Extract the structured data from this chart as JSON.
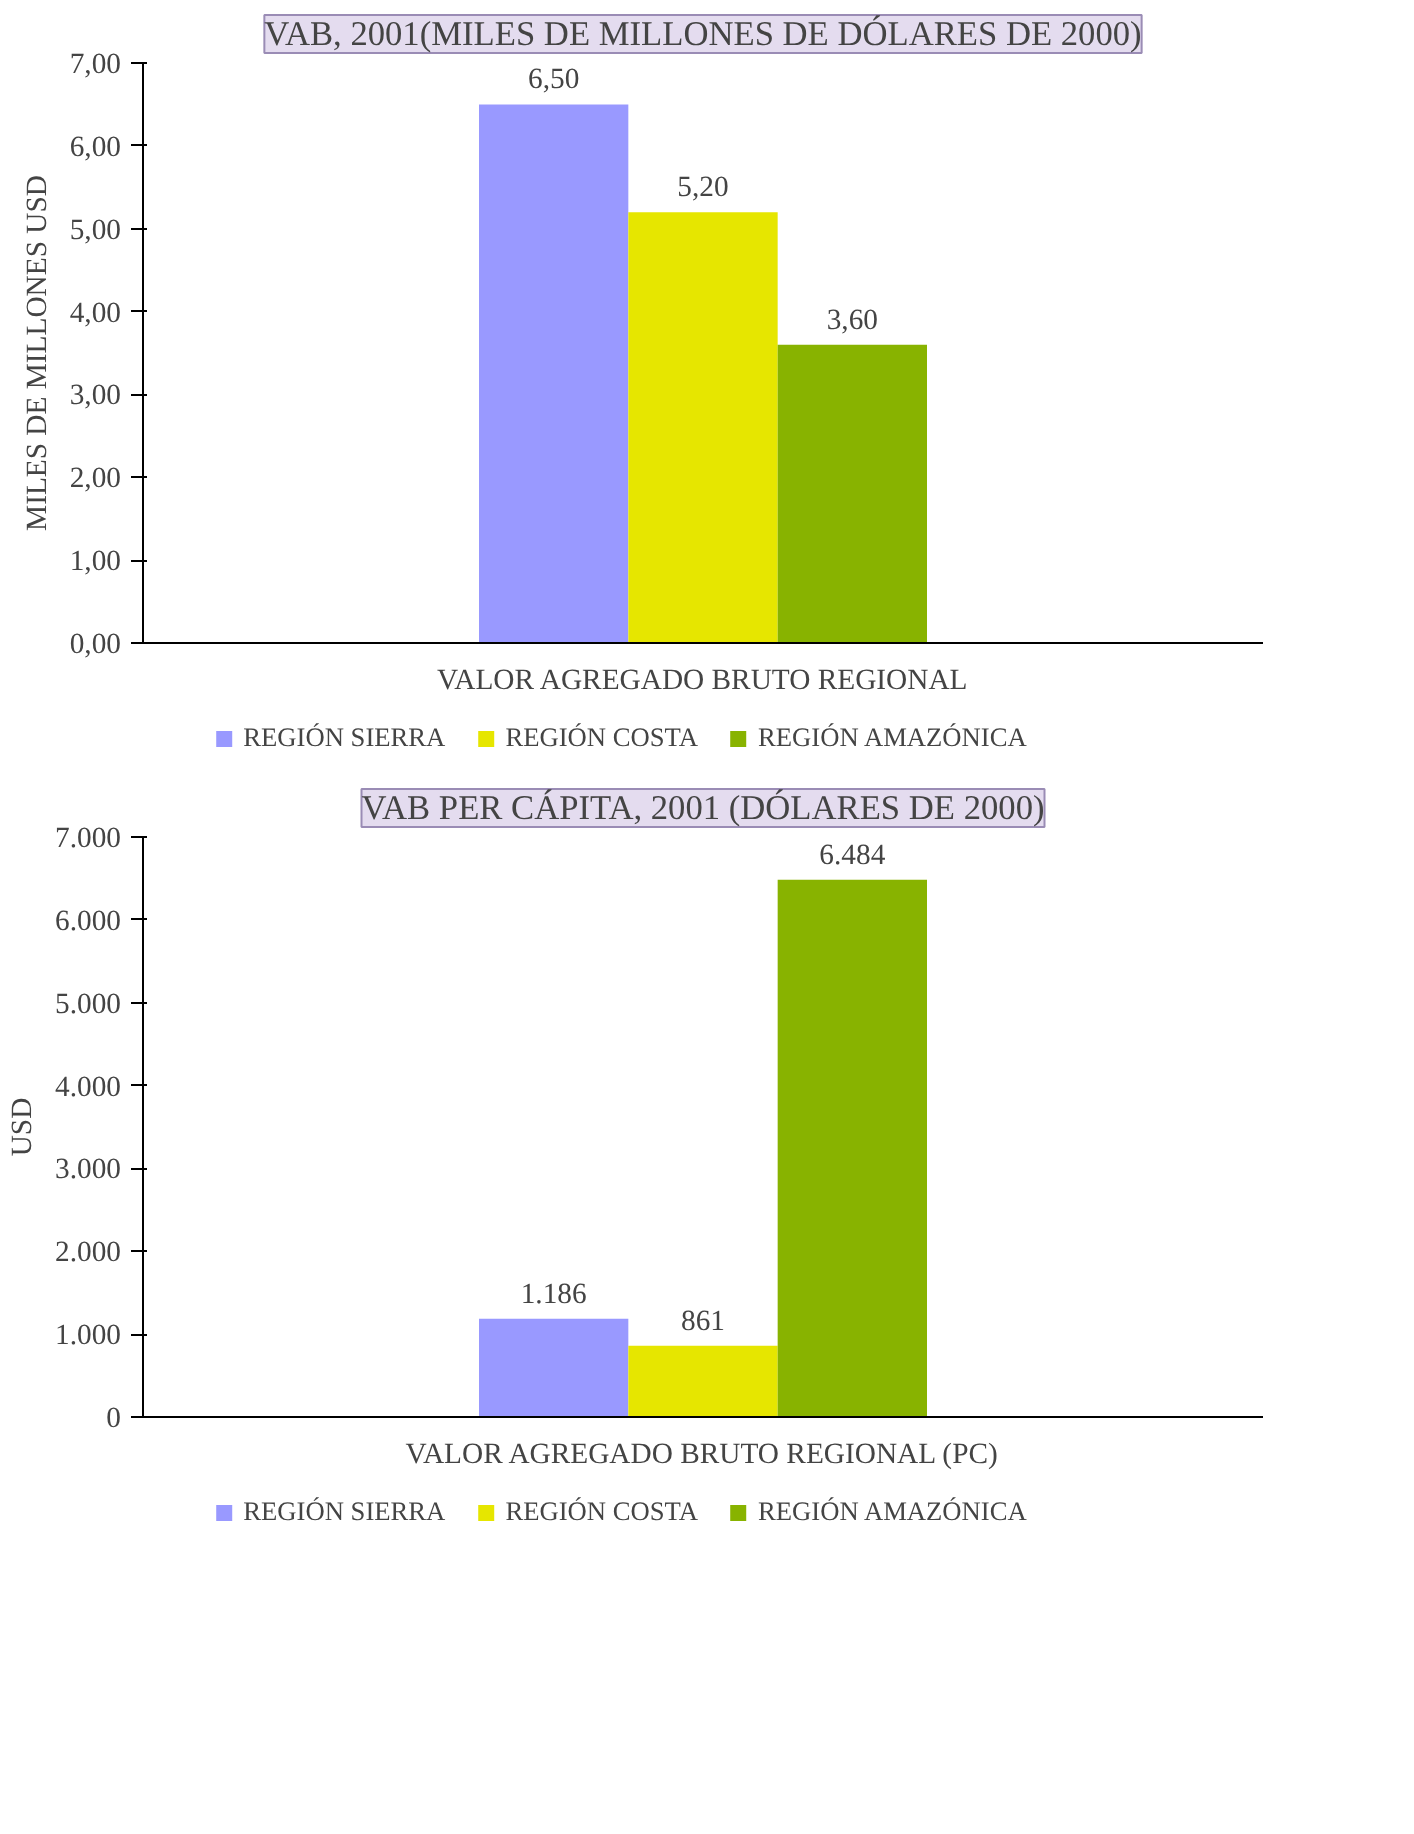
{
  "chart_data": [
    {
      "type": "bar",
      "title": "VAB, 2001(MILES DE MILLONES DE DÓLARES DE 2000)",
      "ylabel": "MILES DE MILLONES USD",
      "categories": [
        "VALOR AGREGADO BRUTO REGIONAL"
      ],
      "series": [
        {
          "name": "REGIÓN SIERRA",
          "color": "#9999ff",
          "values": [
            6.5
          ],
          "value_labels": [
            "6,50"
          ]
        },
        {
          "name": "REGIÓN COSTA",
          "color": "#e6e600",
          "values": [
            5.2
          ],
          "value_labels": [
            "5,20"
          ]
        },
        {
          "name": "REGIÓN AMAZÓNICA",
          "color": "#88b300",
          "values": [
            3.6
          ],
          "value_labels": [
            "3,60"
          ]
        }
      ],
      "ylim": [
        0,
        7
      ],
      "yticks": [
        {
          "value": 0,
          "label": "0,00"
        },
        {
          "value": 1,
          "label": "1,00"
        },
        {
          "value": 2,
          "label": "2,00"
        },
        {
          "value": 3,
          "label": "3,00"
        },
        {
          "value": 4,
          "label": "4,00"
        },
        {
          "value": 5,
          "label": "5,00"
        },
        {
          "value": 6,
          "label": "6,00"
        },
        {
          "value": 7,
          "label": "7,00"
        }
      ],
      "grid": false,
      "legend": "bottom"
    },
    {
      "type": "bar",
      "title": "VAB PER CÁPITA, 2001 (DÓLARES DE 2000)",
      "ylabel": "USD",
      "categories": [
        "VALOR AGREGADO BRUTO REGIONAL (PC)"
      ],
      "series": [
        {
          "name": "REGIÓN SIERRA",
          "color": "#9999ff",
          "values": [
            1186
          ],
          "value_labels": [
            "1.186"
          ]
        },
        {
          "name": "REGIÓN COSTA",
          "color": "#e6e600",
          "values": [
            861
          ],
          "value_labels": [
            "861"
          ]
        },
        {
          "name": "REGIÓN AMAZÓNICA",
          "color": "#88b300",
          "values": [
            6484
          ],
          "value_labels": [
            "6.484"
          ]
        }
      ],
      "ylim": [
        0,
        7000
      ],
      "yticks": [
        0,
        {
          "value": 1000,
          "label": "1.000"
        },
        {
          "value": 2000,
          "label": "2.000"
        },
        {
          "value": 3000,
          "label": "3.000"
        },
        {
          "value": 4000,
          "label": "4.000"
        },
        {
          "value": 5000,
          "label": "5.000"
        },
        {
          "value": 6000,
          "label": "6.000"
        },
        {
          "value": 7000,
          "label": "7.000"
        }
      ],
      "grid": false,
      "legend": "bottom"
    }
  ]
}
